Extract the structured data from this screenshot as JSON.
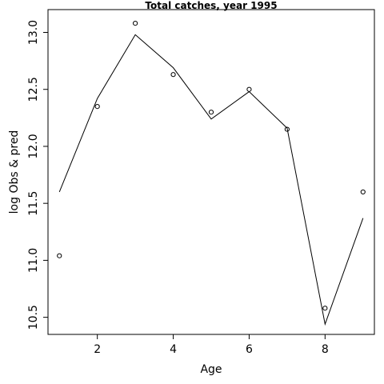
{
  "chart_data": {
    "type": "line",
    "title": "Total catches, year 1995",
    "xlabel": "Age",
    "ylabel": "log Obs & pred",
    "xlim": [
      0.7,
      9.3
    ],
    "ylim": [
      10.35,
      13.2
    ],
    "x_ticks": [
      2,
      4,
      6,
      8
    ],
    "x_tick_labels": [
      "2",
      "4",
      "6",
      "8"
    ],
    "y_ticks": [
      10.5,
      11.0,
      11.5,
      12.0,
      12.5,
      13.0
    ],
    "y_tick_labels": [
      "10.5",
      "11.0",
      "11.5",
      "12.0",
      "12.5",
      "13.0"
    ],
    "grid": false,
    "series": [
      {
        "style": "points",
        "x": [
          1,
          2,
          3,
          4,
          5,
          6,
          7,
          8,
          9
        ],
        "values": [
          11.04,
          12.35,
          13.08,
          12.63,
          12.3,
          12.5,
          12.15,
          10.58,
          11.6
        ]
      },
      {
        "style": "line",
        "x": [
          1,
          2,
          3,
          4,
          5,
          6,
          7,
          8,
          9
        ],
        "values": [
          11.6,
          12.42,
          12.98,
          12.69,
          12.24,
          12.48,
          12.16,
          10.44,
          11.37
        ]
      }
    ]
  }
}
